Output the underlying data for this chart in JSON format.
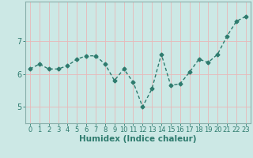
{
  "x": [
    0,
    1,
    2,
    3,
    4,
    5,
    6,
    7,
    8,
    9,
    10,
    11,
    12,
    13,
    14,
    15,
    16,
    17,
    18,
    19,
    20,
    21,
    22,
    23
  ],
  "y": [
    6.15,
    6.3,
    6.15,
    6.15,
    6.25,
    6.45,
    6.55,
    6.55,
    6.3,
    5.8,
    6.15,
    5.75,
    5.0,
    5.55,
    6.6,
    5.65,
    5.7,
    6.05,
    6.45,
    6.35,
    6.6,
    7.15,
    7.6,
    7.75
  ],
  "line_color": "#2e7b6e",
  "marker": "D",
  "marker_size": 2.5,
  "line_width": 1.0,
  "bg_color": "#cce8e5",
  "grid_color": "#e8b8b8",
  "tick_label_color": "#2e7b6e",
  "xlabel": "Humidex (Indice chaleur)",
  "xlabel_color": "#2e7b6e",
  "xlabel_fontsize": 7.5,
  "yticks": [
    5,
    6,
    7
  ],
  "ylim": [
    4.5,
    8.2
  ],
  "xlim": [
    -0.5,
    23.5
  ],
  "xticks": [
    0,
    1,
    2,
    3,
    4,
    5,
    6,
    7,
    8,
    9,
    10,
    11,
    12,
    13,
    14,
    15,
    16,
    17,
    18,
    19,
    20,
    21,
    22,
    23
  ],
  "tick_fontsize": 6,
  "axis_color": "#8ab0ac"
}
